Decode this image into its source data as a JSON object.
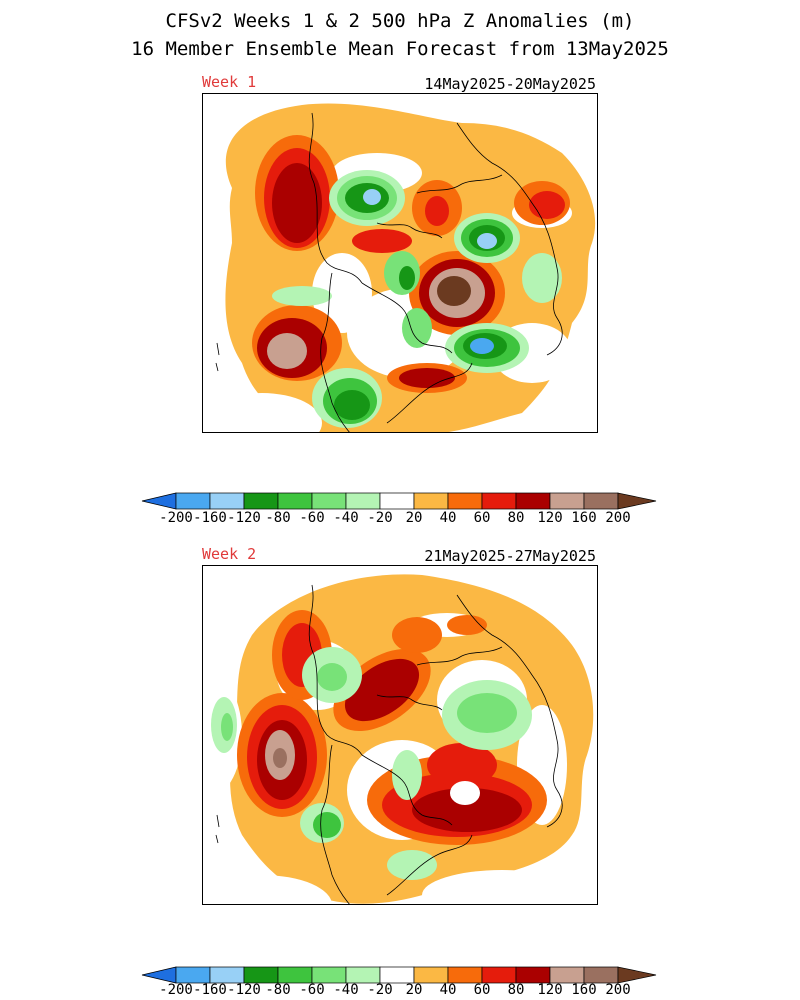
{
  "header": {
    "line1": "CFSv2 Weeks 1 & 2 500 hPa Z Anomalies (m)",
    "line2": "16 Member Ensemble Mean Forecast from 13May2025"
  },
  "panels": [
    {
      "week_label": "Week 1",
      "date_range": "14May2025-20May2025"
    },
    {
      "week_label": "Week 2",
      "date_range": "21May2025-27May2025"
    }
  ],
  "colorbar": {
    "ticks": [
      "-200",
      "-160",
      "-120",
      "-80",
      "-60",
      "-40",
      "-20",
      "20",
      "40",
      "60",
      "80",
      "120",
      "160",
      "200"
    ],
    "colors": {
      "n200": "#1e6fe0",
      "n160": "#4aa8f0",
      "n120": "#98d0f6",
      "n80": "#169616",
      "n60": "#3ec43e",
      "n40": "#78e278",
      "n20": "#b4f4b4",
      "zero": "#ffffff",
      "p20": "#fbb844",
      "p40": "#f76b0b",
      "p60": "#e51c0c",
      "p80": "#aa0000",
      "p120": "#c8a090",
      "p160": "#9a7060",
      "p200": "#6b3a20"
    }
  }
}
